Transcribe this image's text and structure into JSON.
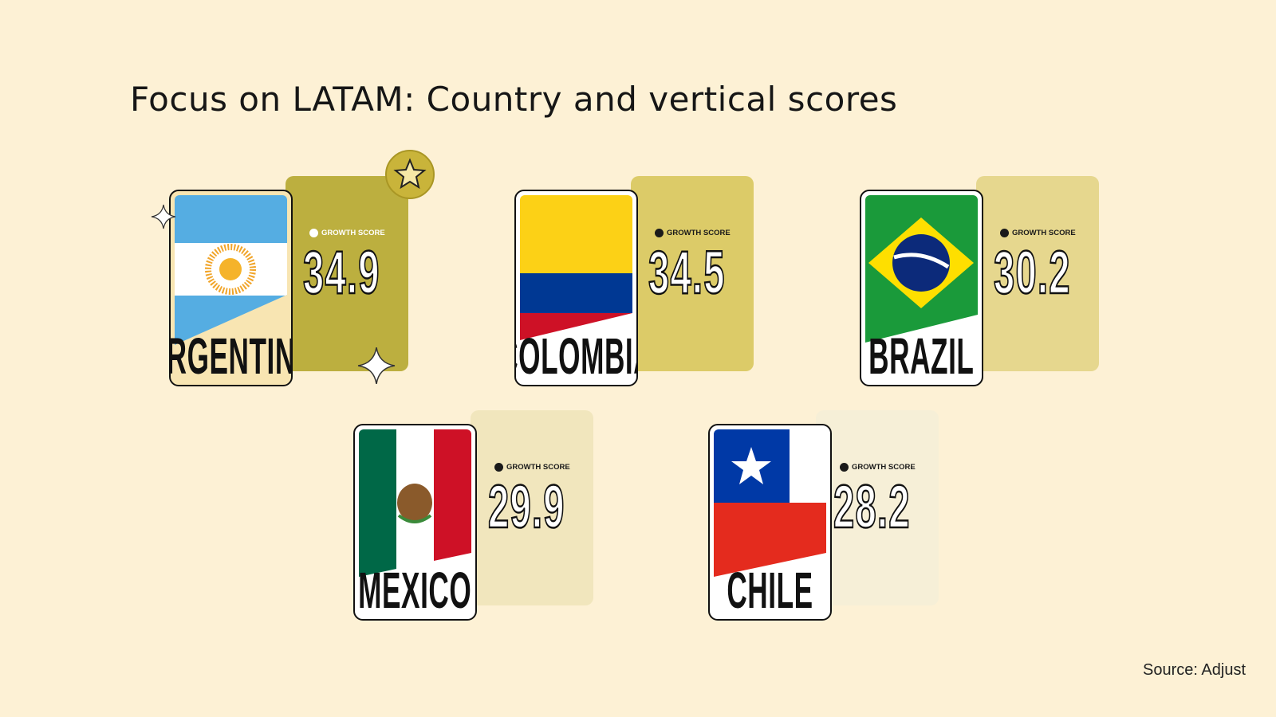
{
  "title": "Focus on LATAM: Country and vertical scores",
  "source": "Source: Adjust",
  "score_label": "GROWTH SCORE",
  "cards": [
    {
      "country": "ARGENTINA",
      "score": "34.9",
      "panel_color": "#bcaf3f",
      "rank_badge": "star-medal-icon"
    },
    {
      "country": "COLOMBIA",
      "score": "34.5",
      "panel_color": "#dccb68"
    },
    {
      "country": "BRAZIL",
      "score": "30.2",
      "panel_color": "#e6d78e"
    },
    {
      "country": "MEXICO",
      "score": "29.9",
      "panel_color": "#f1e6bd"
    },
    {
      "country": "CHILE",
      "score": "28.2",
      "panel_color": "#f6efd7"
    }
  ]
}
